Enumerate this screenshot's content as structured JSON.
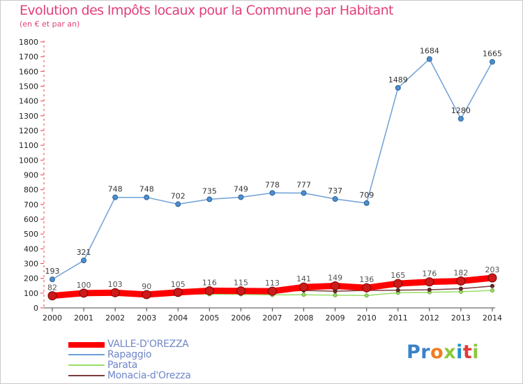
{
  "title": "Evolution des Impôts locaux pour la Commune par Habitant",
  "subtitle": "(en € et par an)",
  "chart_data": {
    "type": "line",
    "title": "Evolution des Impôts locaux pour la Commune par Habitant",
    "subtitle": "(en € et par an)",
    "xlabel": "",
    "ylabel": "",
    "ylim": [
      0,
      1800
    ],
    "yticks": [
      0,
      100,
      200,
      300,
      400,
      500,
      600,
      700,
      800,
      900,
      1000,
      1100,
      1200,
      1300,
      1400,
      1500,
      1600,
      1700,
      1800
    ],
    "x": [
      "2000",
      "2001",
      "2002",
      "2003",
      "2004",
      "2005",
      "2006",
      "2007",
      "2008",
      "2009",
      "2010",
      "2011",
      "2012",
      "2013",
      "2014"
    ],
    "grid": false,
    "legend_position": "bottom-left",
    "series": [
      {
        "name": "VALLE-D'OREZZA",
        "color": "#ff0000",
        "values": [
          82,
          100,
          103,
          90,
          105,
          116,
          115,
          113,
          141,
          149,
          136,
          165,
          176,
          182,
          203
        ],
        "labels": [
          "82",
          "100",
          "103",
          "90",
          "105",
          "116",
          "115",
          "113",
          "141",
          "149",
          "136",
          "165",
          "176",
          "182",
          "203"
        ]
      },
      {
        "name": "Rapaggio",
        "color": "#6fa0d6",
        "values": [
          193,
          321,
          748,
          748,
          702,
          735,
          749,
          778,
          777,
          737,
          709,
          1489,
          1684,
          1280,
          1665
        ],
        "labels": [
          "193",
          "321",
          "748",
          "748",
          "702",
          "735",
          "749",
          "778",
          "777",
          "737",
          "709",
          "1489",
          "1684",
          "1280",
          "1665"
        ]
      },
      {
        "name": "Parata",
        "color": "#99dd66",
        "values": [
          72,
          85,
          87,
          81,
          95,
          92,
          92,
          88,
          89,
          86,
          84,
          103,
          106,
          109,
          118
        ],
        "labels": []
      },
      {
        "name": "Monacia-d'Orezza",
        "color": "#7b3b3b",
        "values": [
          77,
          85,
          86,
          79,
          98,
          103,
          103,
          108,
          118,
          113,
          118,
          120,
          123,
          130,
          148
        ],
        "labels": []
      }
    ]
  },
  "logo": {
    "letters": [
      "P",
      "r",
      "o",
      "x",
      "i",
      "t",
      "i"
    ],
    "colors": [
      "#3a82c8",
      "#3a82c8",
      "#f07c1f",
      "#8cc83c",
      "#1a93cf",
      "#e53a35",
      "#8cc83c"
    ]
  }
}
